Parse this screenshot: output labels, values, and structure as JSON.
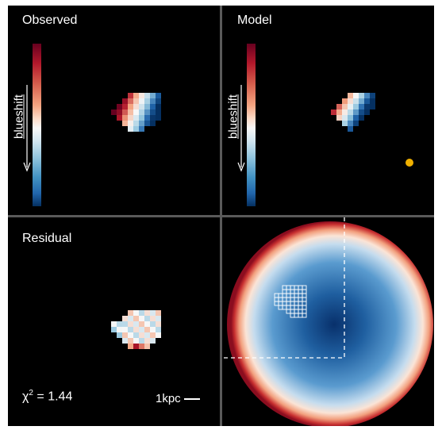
{
  "panels": {
    "observed": {
      "title": "Observed",
      "cbar_label": "blueshift"
    },
    "model": {
      "title": "Model",
      "cbar_label": "blueshift"
    },
    "residual": {
      "title": "Residual",
      "chi_prefix": "χ",
      "chi_exp": "2",
      "chi_value": " = 1.44",
      "scale_label": "1kpc"
    }
  },
  "colors": {
    "redshift": "#b2182b",
    "blueshift": "#2166ac",
    "zero": "#f7f7f7",
    "marker": "#f0b000"
  }
}
